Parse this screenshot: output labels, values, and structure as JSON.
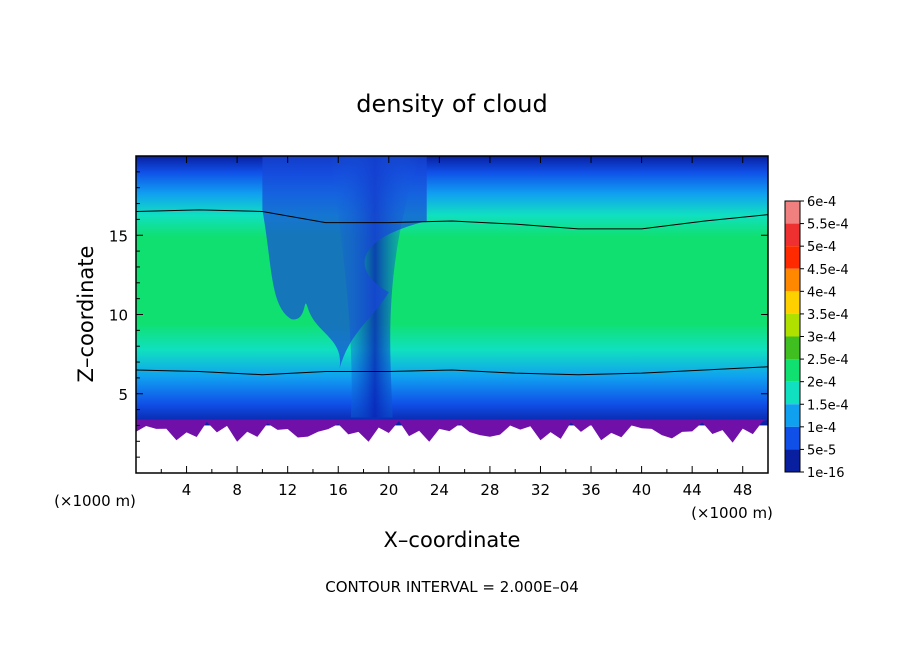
{
  "chart_data": {
    "type": "heatmap",
    "title": "density of cloud",
    "xlabel": "X–coordinate",
    "ylabel": "Z–coordinate",
    "x_unit": "(×1000 m)",
    "x_unit_right": "(×1000 m)",
    "xlim": [
      0,
      50
    ],
    "ylim": [
      0,
      20
    ],
    "x_ticks": [
      "4",
      "8",
      "12",
      "16",
      "20",
      "24",
      "28",
      "32",
      "36",
      "40",
      "44",
      "48"
    ],
    "y_ticks": [
      "5",
      "10",
      "15"
    ],
    "footer": "CONTOUR INTERVAL = 2.000E–04",
    "contour_interval": 0.0002,
    "colorbar": {
      "labels": [
        "6e-4",
        "5.5e-4",
        "5e-4",
        "4.5e-4",
        "4e-4",
        "3.5e-4",
        "3e-4",
        "2.5e-4",
        "2e-4",
        "1.5e-4",
        "1e-4",
        "5e-5",
        "1e-16"
      ],
      "colors": [
        "#f08080",
        "#ee3030",
        "#ff2a00",
        "#ff8800",
        "#ffd000",
        "#b0e000",
        "#40c020",
        "#10e070",
        "#10e0c0",
        "#10a0f0",
        "#1050e8",
        "#0820a0",
        "#7010a8"
      ]
    },
    "cloud_field": {
      "cloud_base_z_km": 3,
      "cloud_top_z_km": 20,
      "core_value": 0.00024,
      "outer_value": 5e-05,
      "base_value": 1e-16,
      "contour_level": 0.0002,
      "contour_upper_z_km": [
        16.5,
        16.6,
        16.5,
        15.8,
        15.8,
        15.9,
        15.7,
        15.4,
        15.4,
        15.9,
        16.3
      ],
      "contour_lower_z_km": [
        6.5,
        6.4,
        6.2,
        6.4,
        6.4,
        6.5,
        6.3,
        6.2,
        6.3,
        6.5,
        6.7
      ],
      "contour_x_km": [
        0,
        5,
        10,
        15,
        20,
        25,
        30,
        35,
        40,
        45,
        50
      ],
      "downdraft_x_km": 18.5,
      "clear_pocket_x_km": [
        10,
        20
      ]
    }
  }
}
